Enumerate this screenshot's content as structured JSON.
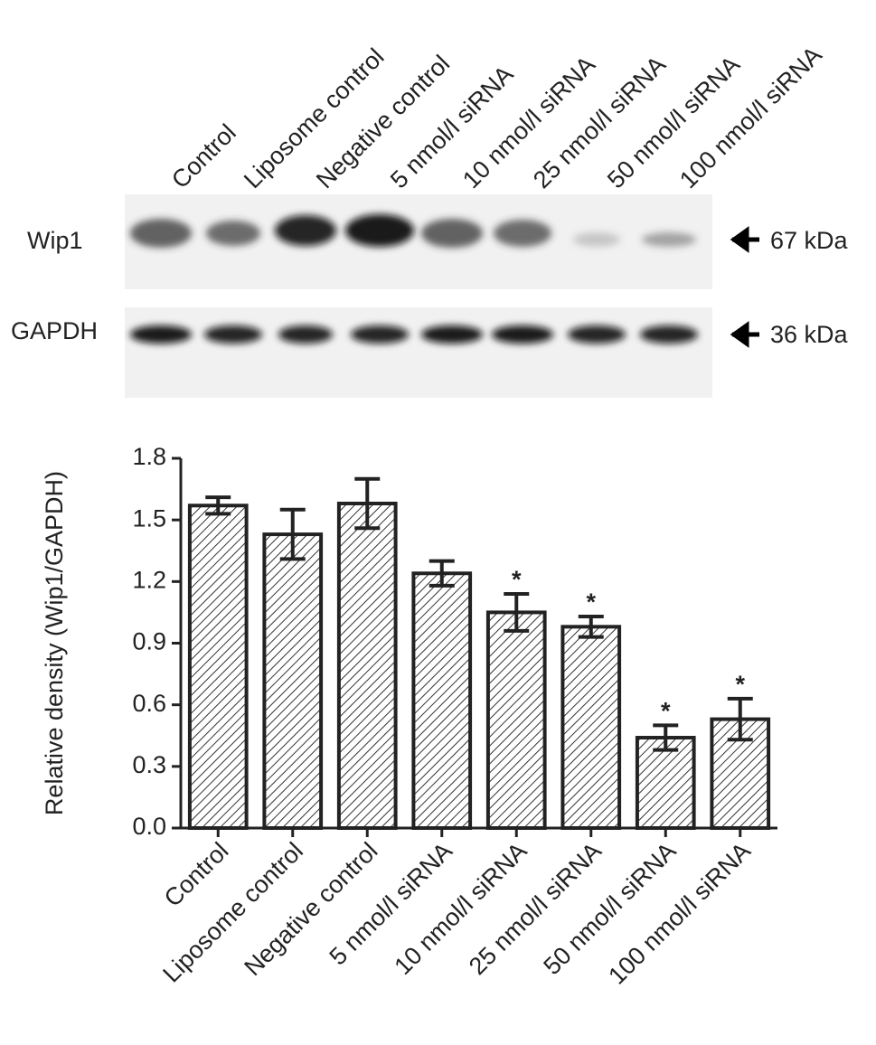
{
  "blot": {
    "rows": [
      {
        "label": "Wip1",
        "size": "67 kDa"
      },
      {
        "label": "GAPDH",
        "size": "36 kDa"
      }
    ]
  },
  "chart_data": {
    "type": "bar",
    "y_label": "Relative density (Wip1/GAPDH)",
    "categories": [
      "Control",
      "Liposome control",
      "Negative control",
      "5 nmol/l siRNA",
      "10 nmol/l siRNA",
      "25 nmol/l siRNA",
      "50 nmol/l siRNA",
      "100 nmol/l siRNA"
    ],
    "values": [
      1.57,
      1.43,
      1.58,
      1.24,
      1.05,
      0.98,
      0.44,
      0.53
    ],
    "errors": [
      0.04,
      0.12,
      0.12,
      0.06,
      0.09,
      0.05,
      0.06,
      0.1
    ],
    "markers": [
      null,
      null,
      null,
      null,
      "*",
      "*",
      "*",
      "*"
    ],
    "color": "#ffffff",
    "ylim": [
      0,
      1.8
    ],
    "yticks": [
      {
        "value": 0,
        "label": "0.0"
      },
      0.3,
      0.6,
      0.9,
      1.2,
      1.5,
      1.8
    ]
  }
}
